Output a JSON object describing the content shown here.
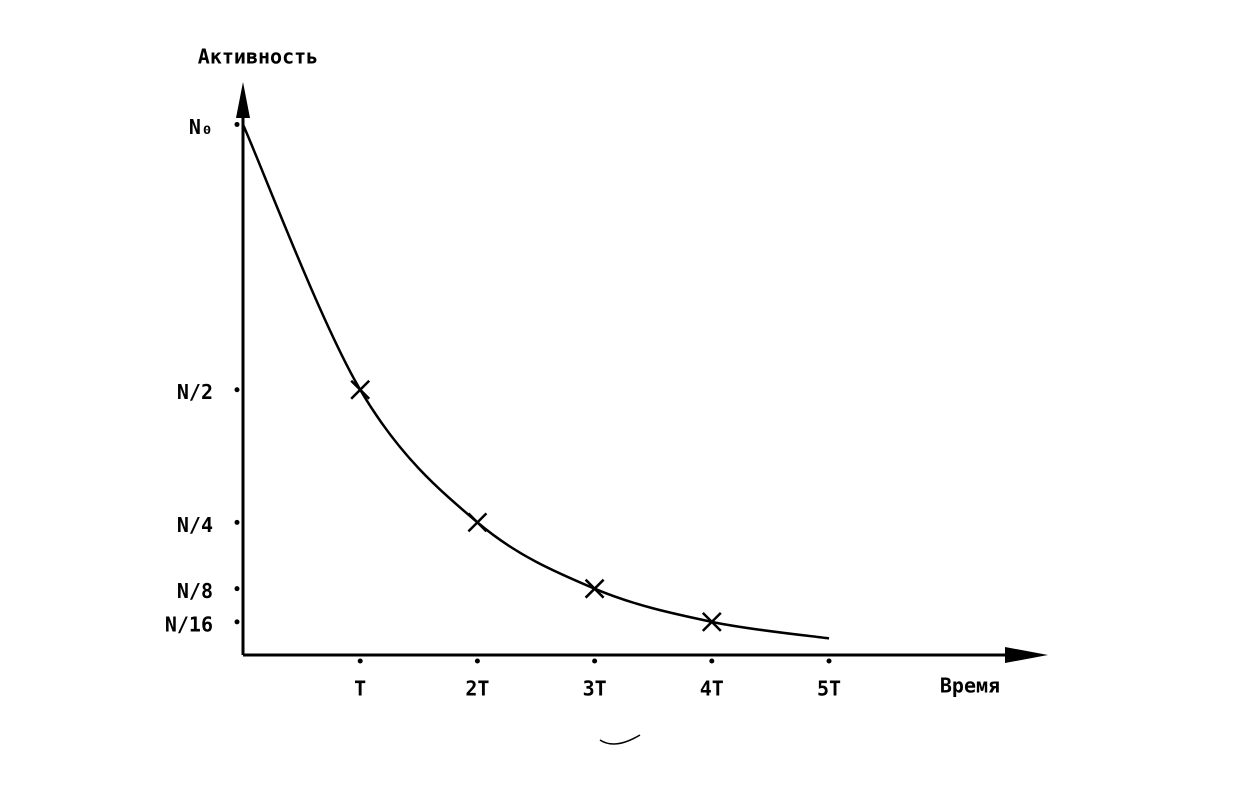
{
  "chart_data": {
    "type": "line",
    "y_label": "Активность",
    "x_label": "Время",
    "x": [
      0,
      1,
      2,
      3,
      4,
      5
    ],
    "values": [
      1,
      0.5,
      0.25,
      0.125,
      0.0625,
      0.03125
    ],
    "markers": [
      false,
      true,
      true,
      true,
      true,
      false
    ],
    "color": "#000000",
    "xlim": [
      0,
      6.8
    ],
    "ylim": [
      0,
      1.08
    ],
    "xticks": [
      {
        "value": 1,
        "label": "T"
      },
      {
        "value": 2,
        "label": "2T"
      },
      {
        "value": 3,
        "label": "3T"
      },
      {
        "value": 4,
        "label": "4T"
      },
      {
        "value": 5,
        "label": "5T"
      }
    ],
    "yticks": [
      {
        "value": 1,
        "label": "N₀"
      },
      {
        "value": 0.5,
        "label": "N/2"
      },
      {
        "value": 0.25,
        "label": "N/4"
      },
      {
        "value": 0.125,
        "label": "N/8"
      },
      {
        "value": 0.0625,
        "label": "N/16"
      }
    ]
  }
}
